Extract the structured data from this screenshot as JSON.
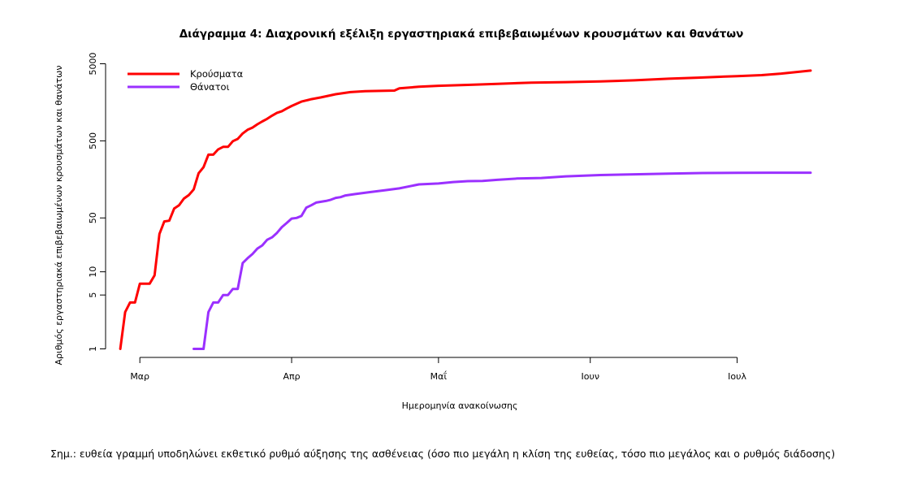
{
  "chart_data": {
    "type": "line",
    "title": "Διάγραμμα 4: Διαχρονική εξέλιξη εργαστηριακά επιβεβαιωμένων κρουσμάτων και θανάτων",
    "xlabel": "Ημερομηνία ανακοίνωσης",
    "ylabel": "Αριθμός εργαστηριακά επιβεβαιωμένων κρουσμάτων και θανάτων",
    "y_scale": "log",
    "yticks": [
      1,
      5,
      10,
      50,
      500,
      5000
    ],
    "ytick_labels": [
      "1",
      "5",
      "10",
      "50",
      "500",
      "5000"
    ],
    "xticks": [
      "2020-03-01",
      "2020-04-01",
      "2020-05-01",
      "2020-06-01",
      "2020-07-01"
    ],
    "xtick_labels": [
      "Μαρ",
      "Απρ",
      "Μαΐ",
      "Ιουν",
      "Ιουλ"
    ],
    "xlim": [
      "2020-02-23",
      "2020-07-17"
    ],
    "ylim": [
      0.5,
      5500
    ],
    "grid": false,
    "legend_position": "top-left",
    "series": [
      {
        "name": "Κρούσματα",
        "color": "#ff0000",
        "points": [
          [
            "2020-02-26",
            1
          ],
          [
            "2020-02-27",
            3
          ],
          [
            "2020-02-28",
            4
          ],
          [
            "2020-02-29",
            4
          ],
          [
            "2020-03-01",
            7
          ],
          [
            "2020-03-02",
            7
          ],
          [
            "2020-03-03",
            7
          ],
          [
            "2020-03-04",
            9
          ],
          [
            "2020-03-05",
            31
          ],
          [
            "2020-03-06",
            45
          ],
          [
            "2020-03-07",
            46
          ],
          [
            "2020-03-08",
            66
          ],
          [
            "2020-03-09",
            73
          ],
          [
            "2020-03-10",
            89
          ],
          [
            "2020-03-11",
            99
          ],
          [
            "2020-03-12",
            117
          ],
          [
            "2020-03-13",
            190
          ],
          [
            "2020-03-14",
            228
          ],
          [
            "2020-03-15",
            331
          ],
          [
            "2020-03-16",
            331
          ],
          [
            "2020-03-17",
            387
          ],
          [
            "2020-03-18",
            418
          ],
          [
            "2020-03-19",
            418
          ],
          [
            "2020-03-20",
            495
          ],
          [
            "2020-03-21",
            530
          ],
          [
            "2020-03-22",
            624
          ],
          [
            "2020-03-23",
            695
          ],
          [
            "2020-03-24",
            743
          ],
          [
            "2020-03-25",
            821
          ],
          [
            "2020-03-26",
            892
          ],
          [
            "2020-03-27",
            966
          ],
          [
            "2020-03-28",
            1061
          ],
          [
            "2020-03-29",
            1156
          ],
          [
            "2020-03-30",
            1212
          ],
          [
            "2020-03-31",
            1314
          ],
          [
            "2020-04-01",
            1415
          ],
          [
            "2020-04-03",
            1613
          ],
          [
            "2020-04-05",
            1735
          ],
          [
            "2020-04-07",
            1832
          ],
          [
            "2020-04-10",
            2011
          ],
          [
            "2020-04-13",
            2145
          ],
          [
            "2020-04-16",
            2207
          ],
          [
            "2020-04-20",
            2235
          ],
          [
            "2020-04-22",
            2245
          ],
          [
            "2020-04-23",
            2401
          ],
          [
            "2020-04-27",
            2517
          ],
          [
            "2020-05-01",
            2591
          ],
          [
            "2020-05-07",
            2663
          ],
          [
            "2020-05-13",
            2744
          ],
          [
            "2020-05-20",
            2850
          ],
          [
            "2020-05-27",
            2892
          ],
          [
            "2020-06-03",
            2952
          ],
          [
            "2020-06-10",
            3049
          ],
          [
            "2020-06-17",
            3203
          ],
          [
            "2020-06-23",
            3302
          ],
          [
            "2020-07-01",
            3458
          ],
          [
            "2020-07-06",
            3560
          ],
          [
            "2020-07-10",
            3732
          ],
          [
            "2020-07-14",
            3964
          ],
          [
            "2020-07-16",
            4077
          ]
        ]
      },
      {
        "name": "Θάνατοι",
        "color": "#9b30ff",
        "points": [
          [
            "2020-03-12",
            1
          ],
          [
            "2020-03-13",
            1
          ],
          [
            "2020-03-14",
            1
          ],
          [
            "2020-03-15",
            3
          ],
          [
            "2020-03-16",
            4
          ],
          [
            "2020-03-17",
            4
          ],
          [
            "2020-03-18",
            5
          ],
          [
            "2020-03-19",
            5
          ],
          [
            "2020-03-20",
            6
          ],
          [
            "2020-03-21",
            6
          ],
          [
            "2020-03-22",
            13
          ],
          [
            "2020-03-23",
            15
          ],
          [
            "2020-03-24",
            17
          ],
          [
            "2020-03-25",
            20
          ],
          [
            "2020-03-26",
            22
          ],
          [
            "2020-03-27",
            26
          ],
          [
            "2020-03-28",
            28
          ],
          [
            "2020-03-29",
            32
          ],
          [
            "2020-03-30",
            38
          ],
          [
            "2020-03-31",
            43
          ],
          [
            "2020-04-01",
            49
          ],
          [
            "2020-04-02",
            50
          ],
          [
            "2020-04-03",
            53
          ],
          [
            "2020-04-04",
            68
          ],
          [
            "2020-04-05",
            73
          ],
          [
            "2020-04-06",
            79
          ],
          [
            "2020-04-07",
            81
          ],
          [
            "2020-04-08",
            83
          ],
          [
            "2020-04-09",
            86
          ],
          [
            "2020-04-10",
            91
          ],
          [
            "2020-04-11",
            93
          ],
          [
            "2020-04-12",
            98
          ],
          [
            "2020-04-14",
            102
          ],
          [
            "2020-04-17",
            108
          ],
          [
            "2020-04-20",
            114
          ],
          [
            "2020-04-23",
            121
          ],
          [
            "2020-04-27",
            136
          ],
          [
            "2020-05-01",
            140
          ],
          [
            "2020-05-04",
            146
          ],
          [
            "2020-05-07",
            150
          ],
          [
            "2020-05-10",
            151
          ],
          [
            "2020-05-13",
            156
          ],
          [
            "2020-05-17",
            162
          ],
          [
            "2020-05-22",
            165
          ],
          [
            "2020-05-27",
            173
          ],
          [
            "2020-06-03",
            180
          ],
          [
            "2020-06-10",
            184
          ],
          [
            "2020-06-17",
            188
          ],
          [
            "2020-06-24",
            191
          ],
          [
            "2020-07-01",
            192
          ],
          [
            "2020-07-08",
            193
          ],
          [
            "2020-07-16",
            193
          ]
        ]
      }
    ]
  },
  "note": {
    "text": "Σημ.: ευθεία γραμμή υποδηλώνει εκθετικό ρυθμό αύξησης της ασθένειας (όσο πιο μεγάλη η κλίση της ευθείας, τόσο πιο μεγάλος και ο ρυθμός διάδοσης)"
  }
}
